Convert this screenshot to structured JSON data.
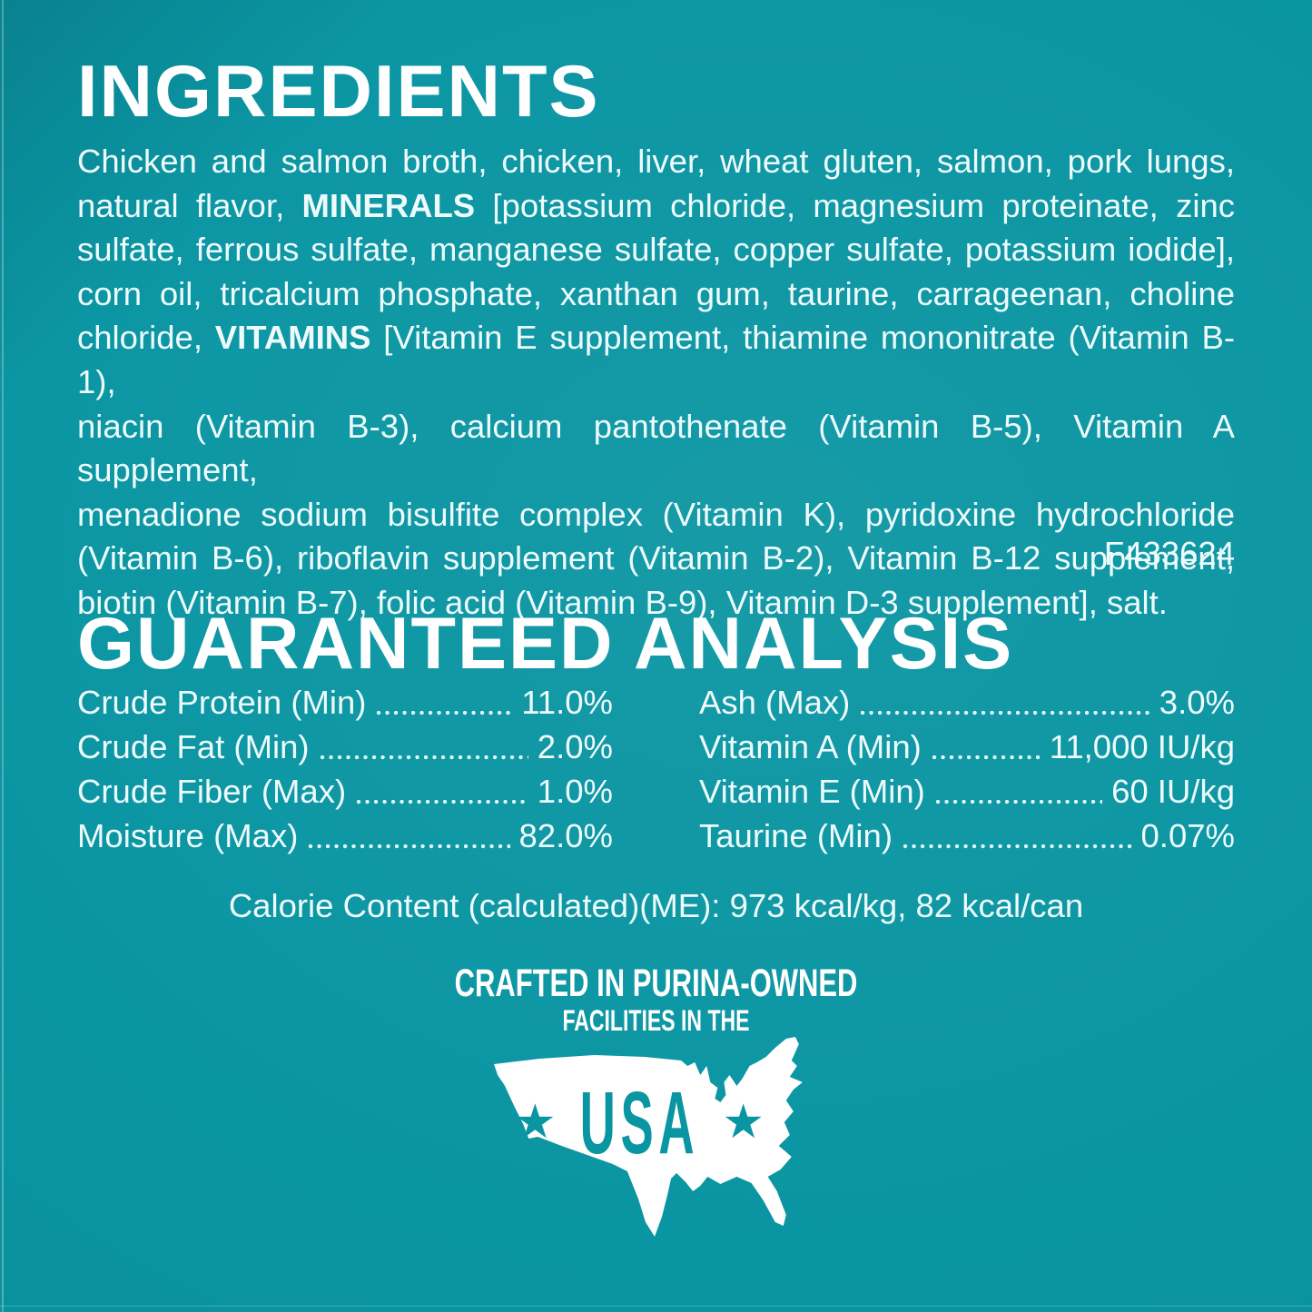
{
  "colors": {
    "background": "#0a95a2",
    "heading_text": "#ffffff",
    "body_text": "#eefbfc",
    "map_fill": "#ffffff",
    "usa_mark_text": "#0a95a2"
  },
  "ingredients": {
    "title": "INGREDIENTS",
    "lines": [
      [
        {
          "t": "Chicken and salmon broth, chicken, liver, wheat gluten, salmon, pork lungs,"
        }
      ],
      [
        {
          "t": "natural flavor, "
        },
        {
          "t": "MINERALS",
          "b": true
        },
        {
          "t": " [potassium chloride, magnesium proteinate, zinc"
        }
      ],
      [
        {
          "t": "sulfate, ferrous sulfate, manganese sulfate, copper sulfate, potassium iodide],"
        }
      ],
      [
        {
          "t": "corn oil, tricalcium phosphate, xanthan gum, taurine, carrageenan, choline"
        }
      ],
      [
        {
          "t": "chloride, "
        },
        {
          "t": "VITAMINS",
          "b": true
        },
        {
          "t": " [Vitamin E supplement, thiamine mononitrate (Vitamin B-1),"
        }
      ],
      [
        {
          "t": "niacin (Vitamin B-3), calcium pantothenate (Vitamin B-5), Vitamin A supplement,"
        }
      ],
      [
        {
          "t": "menadione sodium bisulfite complex (Vitamin K), pyridoxine hydrochloride"
        }
      ],
      [
        {
          "t": "(Vitamin B-6), riboflavin supplement (Vitamin B-2), Vitamin B-12 supplement,"
        }
      ],
      [
        {
          "t": "biotin (Vitamin B-7), folic acid (Vitamin B-9), Vitamin D-3 supplement], salt."
        }
      ]
    ],
    "code": "F433624"
  },
  "analysis": {
    "title": "GUARANTEED ANALYSIS",
    "left": [
      {
        "label": "Crude Protein (Min)",
        "value": "11.0%"
      },
      {
        "label": "Crude Fat (Min)",
        "value": "2.0%"
      },
      {
        "label": "Crude Fiber (Max)",
        "value": "1.0%"
      },
      {
        "label": "Moisture (Max)",
        "value": "82.0%"
      }
    ],
    "right": [
      {
        "label": "Ash (Max)",
        "value": "3.0%"
      },
      {
        "label": "Vitamin A (Min)",
        "value": "11,000 IU/kg"
      },
      {
        "label": "Vitamin E (Min)",
        "value": "60 IU/kg"
      },
      {
        "label": "Taurine (Min)",
        "value": "0.07%"
      }
    ]
  },
  "calorie_line": "Calorie Content (calculated)(ME): 973 kcal/kg, 82 kcal/can",
  "crafted": {
    "line1": "CRAFTED IN PURINA-OWNED",
    "line2": "FACILITIES IN THE",
    "usa": "USA",
    "star": "★"
  }
}
